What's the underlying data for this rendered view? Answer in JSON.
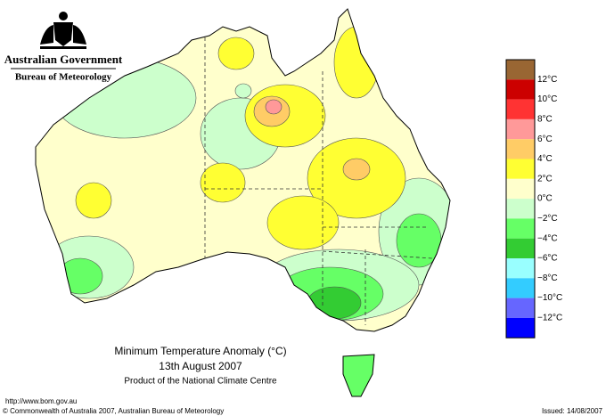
{
  "header": {
    "government": "Australian Government",
    "agency": "Bureau of Meteorology"
  },
  "map": {
    "title": "Minimum Temperature Anomaly (°C)",
    "date": "13th August 2007",
    "product": "Product of the National Climate Centre"
  },
  "legend": {
    "colors": [
      "#996633",
      "#cc0000",
      "#ff3333",
      "#ff9999",
      "#ffcc66",
      "#ffff33",
      "#ffffcc",
      "#ccffcc",
      "#66ff66",
      "#33cc33",
      "#99ffff",
      "#33ccff",
      "#6666ff",
      "#0000ff"
    ],
    "labels": [
      "12°C",
      "10°C",
      "8°C",
      "6°C",
      "4°C",
      "2°C",
      "0°C",
      "−2°C",
      "−4°C",
      "−6°C",
      "−8°C",
      "−10°C",
      "−12°C"
    ]
  },
  "footer": {
    "url": "http://www.bom.gov.au",
    "copyright": "© Commonwealth of Australia 2007, Australian Bureau of Meteorology",
    "issued": "Issued: 14/08/2007"
  }
}
